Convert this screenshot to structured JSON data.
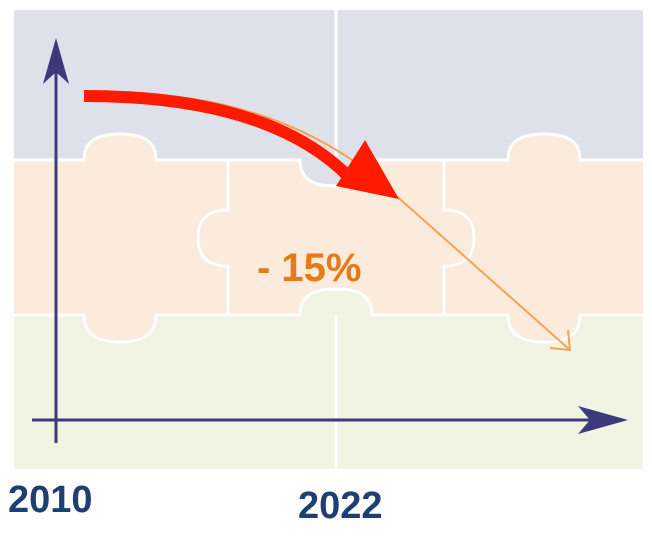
{
  "labels": {
    "change": "- 15%",
    "year_start": "2010",
    "year_end": "2022"
  },
  "colors": {
    "band_top": "#dfe1ea",
    "band_middle": "#faebdd",
    "band_bottom": "#f1f3e3",
    "seam": "#ffffff",
    "axis": "#3c3a7b",
    "trend_arrow": "#ff1a00",
    "thin_arrow": "#f4a34f",
    "change_text": "#e57a17",
    "year_text": "#1f3e73"
  },
  "icons": {
    "background": "puzzle-pieces",
    "main_arrow": "curved-down-arrow"
  }
}
